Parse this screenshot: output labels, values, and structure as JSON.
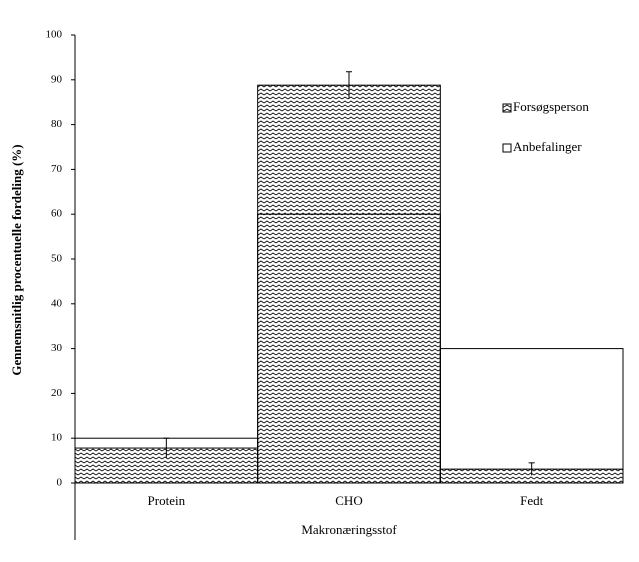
{
  "chart_data": {
    "type": "bar",
    "y_label": "Gennemsnitlig procentuelle fordeling (%)",
    "x_label": "Makronæringsstof",
    "categories": [
      "Protein",
      "CHO",
      "Fedt"
    ],
    "series": [
      {
        "name": "Forsøgsperson",
        "color": "#000000",
        "pattern": "zigzag",
        "values": [
          7.8,
          88.8,
          3.1
        ],
        "errors": [
          2.2,
          3,
          1.4
        ]
      },
      {
        "name": "Anbefalinger",
        "color": "#000000",
        "pattern": "none",
        "values": [
          10,
          60,
          30
        ]
      }
    ],
    "ylim": [
      0,
      100
    ],
    "yticks": [
      0,
      10,
      20,
      30,
      40,
      50,
      60,
      70,
      80,
      90,
      100
    ]
  }
}
